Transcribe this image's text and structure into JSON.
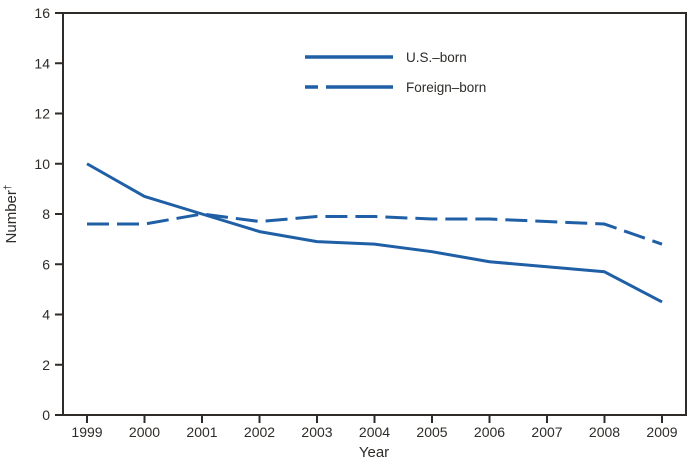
{
  "colors": {
    "line_blue": "#1f5fa6",
    "axis_dark": "#2e2b28",
    "background": "#ffffff"
  },
  "chart_data": {
    "type": "line",
    "title": "",
    "xlabel": "Year",
    "ylabel": "Number",
    "ylabel_superscript": "†",
    "x": [
      1999,
      2000,
      2001,
      2002,
      2003,
      2004,
      2005,
      2006,
      2007,
      2008,
      2009
    ],
    "ylim": [
      0,
      16
    ],
    "yticks": [
      0,
      2,
      4,
      6,
      8,
      10,
      12,
      14,
      16
    ],
    "grid": false,
    "legend_position": "top-center-inside",
    "series": [
      {
        "name": "U.S.–born",
        "line_style": "solid",
        "color": "#1f5fa6",
        "values": [
          10.0,
          8.7,
          8.0,
          7.3,
          6.9,
          6.8,
          6.5,
          6.1,
          5.9,
          5.7,
          4.5
        ]
      },
      {
        "name": "Foreign–born",
        "line_style": "dashed",
        "color": "#1f5fa6",
        "values": [
          7.6,
          7.6,
          8.0,
          7.7,
          7.9,
          7.9,
          7.8,
          7.8,
          7.7,
          7.6,
          6.8
        ]
      }
    ]
  }
}
